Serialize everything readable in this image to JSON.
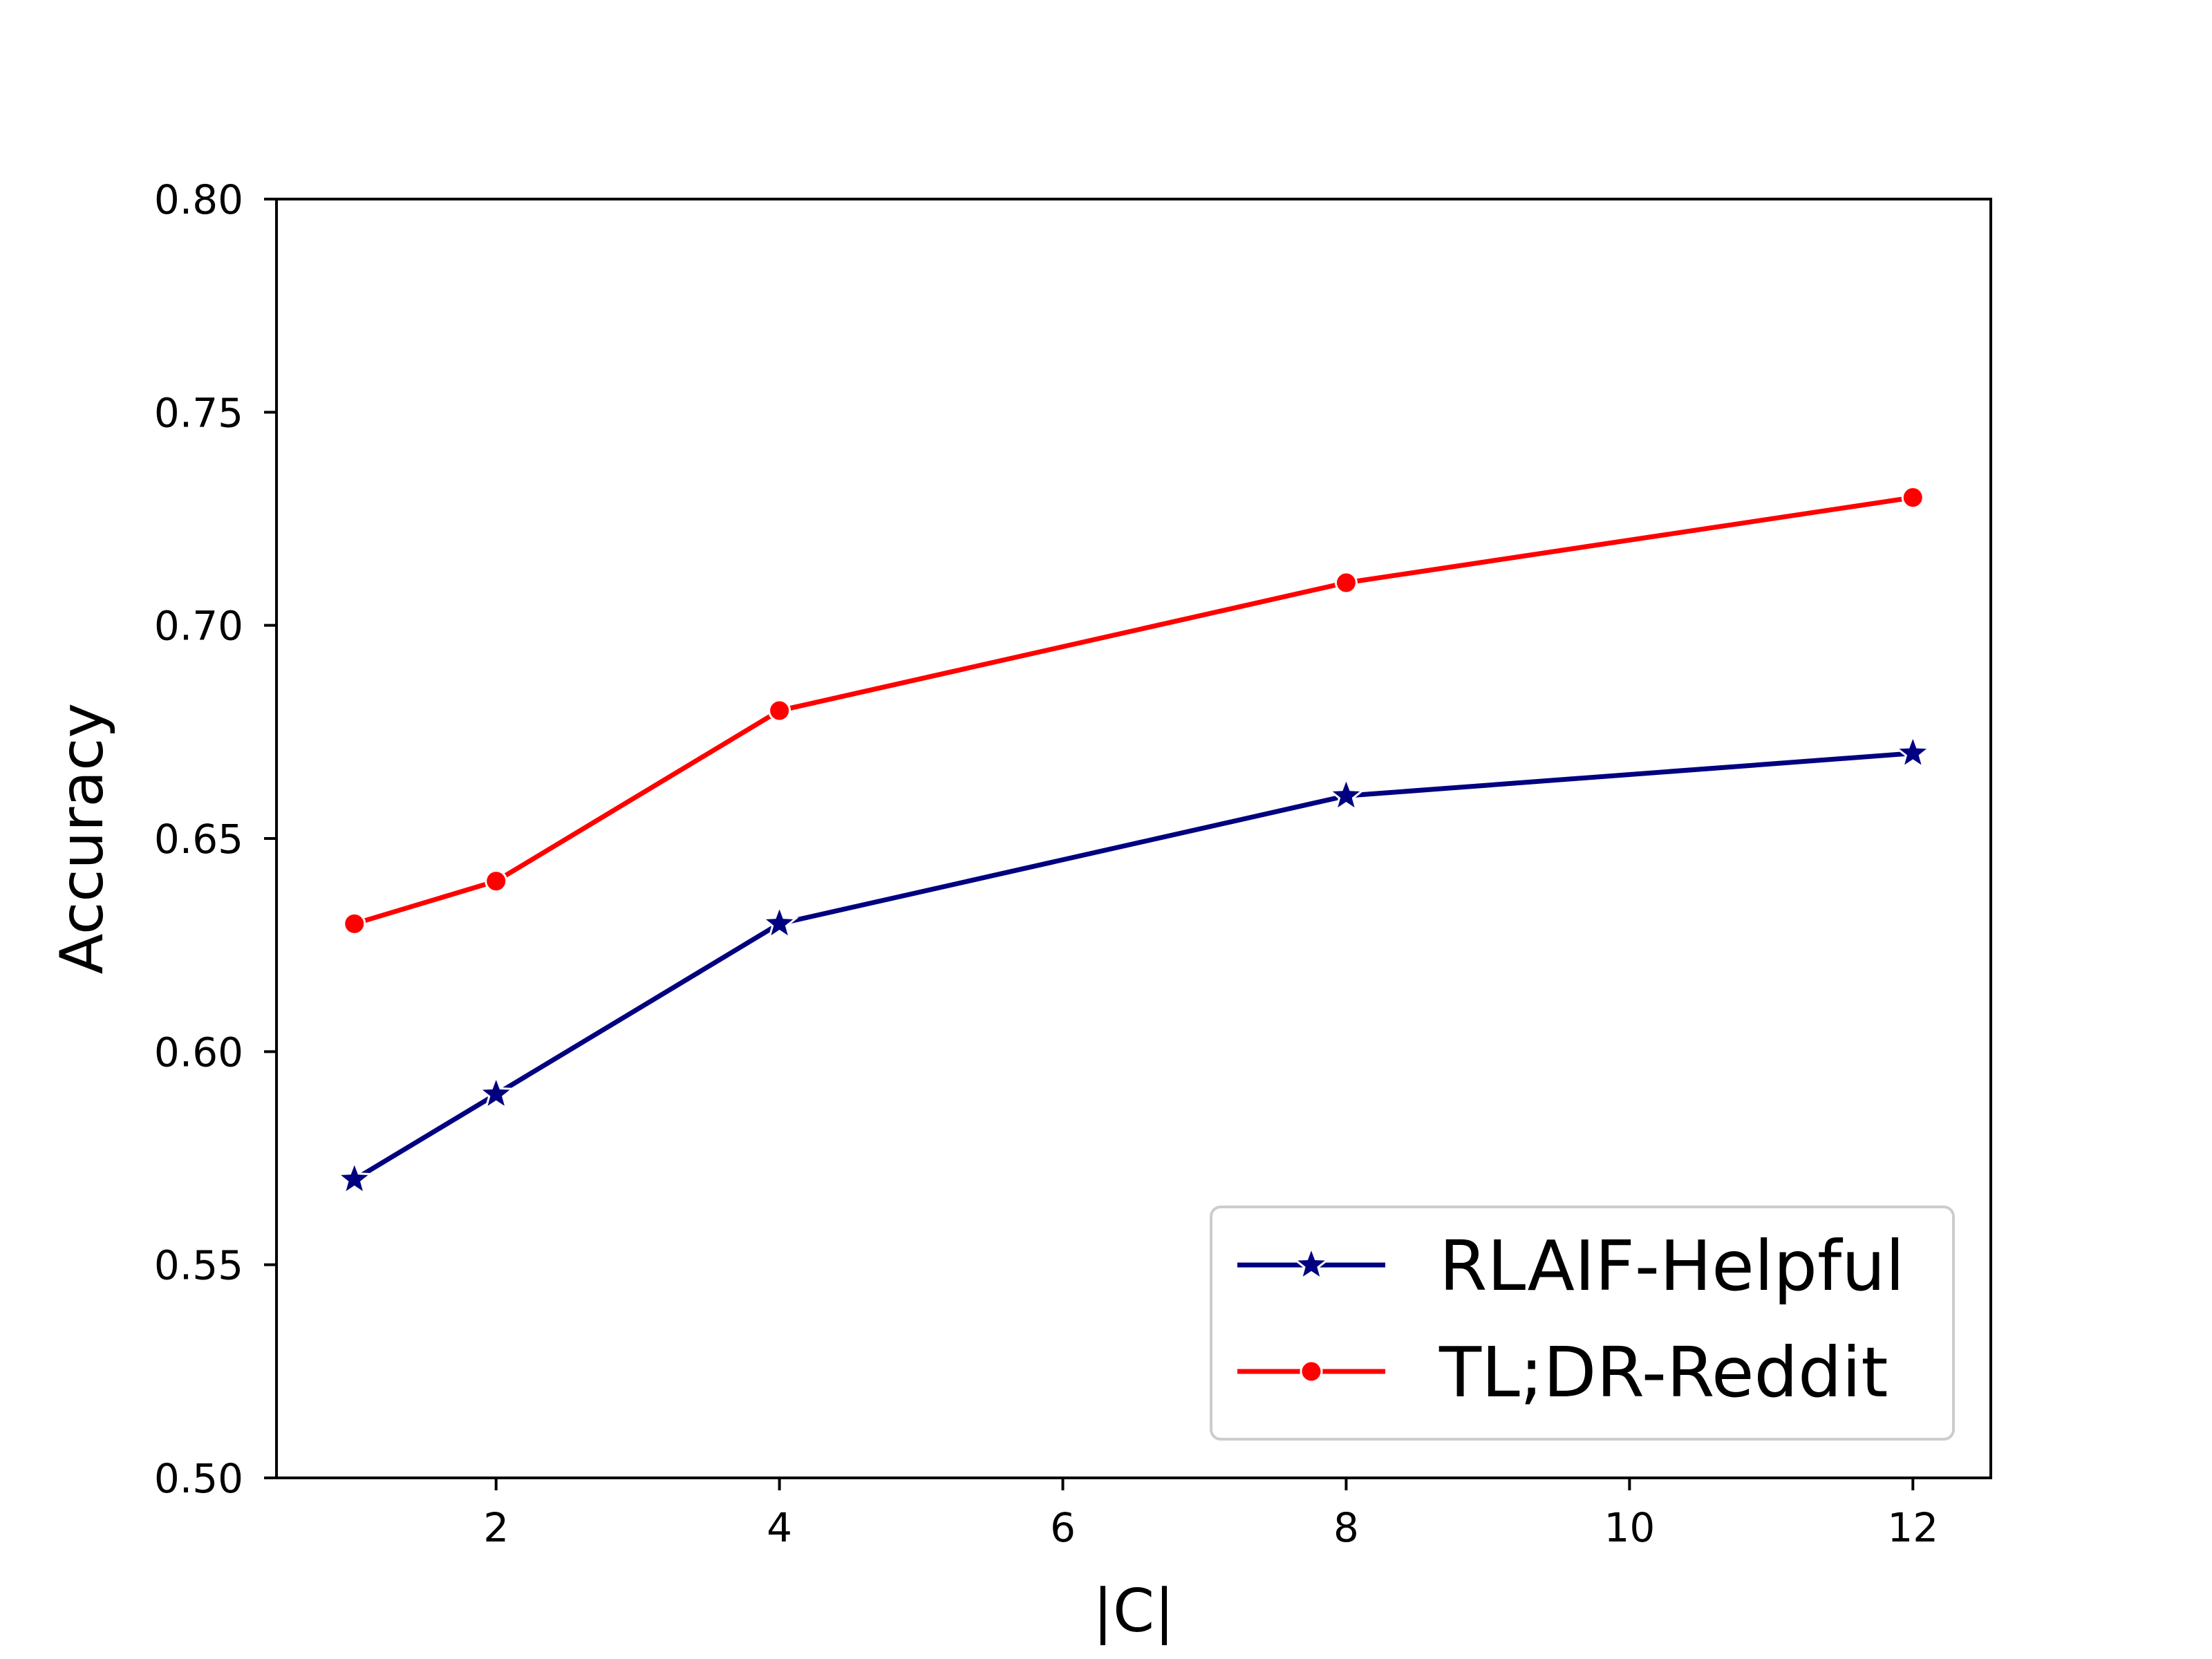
{
  "chart_data": {
    "type": "line",
    "xlabel": "|C|",
    "ylabel": "Accuracy",
    "xlim": [
      0.45,
      12.55
    ],
    "ylim": [
      0.5,
      0.8
    ],
    "xticks": [
      2,
      4,
      6,
      8,
      10,
      12
    ],
    "yticks": [
      0.5,
      0.55,
      0.6,
      0.65,
      0.7,
      0.75,
      0.8
    ],
    "grid": false,
    "legend_position": "bottom-right",
    "x": [
      1,
      2,
      4,
      8,
      12
    ],
    "series": [
      {
        "name": "RLAIF-Helpful",
        "values": [
          0.57,
          0.59,
          0.63,
          0.66,
          0.67
        ],
        "color": "#000080",
        "marker": "star"
      },
      {
        "name": "TL;DR-Reddit",
        "values": [
          0.63,
          0.64,
          0.68,
          0.71,
          0.73
        ],
        "color": "#ff0000",
        "marker": "circle"
      }
    ]
  }
}
